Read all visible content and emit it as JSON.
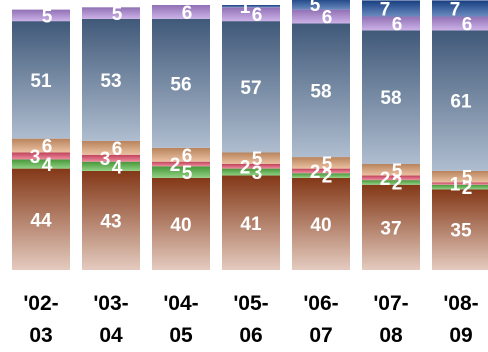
{
  "chart_data": {
    "type": "bar",
    "stacked": true,
    "categories": [
      [
        "'02-",
        "03"
      ],
      [
        "'03-",
        "04"
      ],
      [
        "'04-",
        "05"
      ],
      [
        "'05-",
        "06"
      ],
      [
        "'06-",
        "07"
      ],
      [
        "'07-",
        "08"
      ],
      [
        "'08-",
        "09"
      ]
    ],
    "series": [
      {
        "color": "#a0441c",
        "values": [
          44,
          43,
          40,
          41,
          40,
          37,
          35
        ]
      },
      {
        "color": "#55b844",
        "values": [
          4,
          4,
          5,
          3,
          2,
          2,
          2
        ]
      },
      {
        "color": "#e8506e",
        "values": [
          3,
          3,
          2,
          2,
          2,
          2,
          1
        ]
      },
      {
        "color": "#e0a070",
        "values": [
          6,
          6,
          6,
          5,
          5,
          5,
          5
        ]
      },
      {
        "color": "#4e6c94",
        "values": [
          51,
          53,
          56,
          57,
          58,
          58,
          61
        ]
      },
      {
        "color": "#b088dc",
        "values": [
          5,
          5,
          6,
          6,
          6,
          6,
          6
        ]
      },
      {
        "color": "#1c4c9c",
        "values": [
          0,
          0,
          0,
          1,
          5,
          7,
          7
        ]
      }
    ],
    "legend": "none",
    "grid": false,
    "ylim": [
      0,
      115
    ]
  }
}
